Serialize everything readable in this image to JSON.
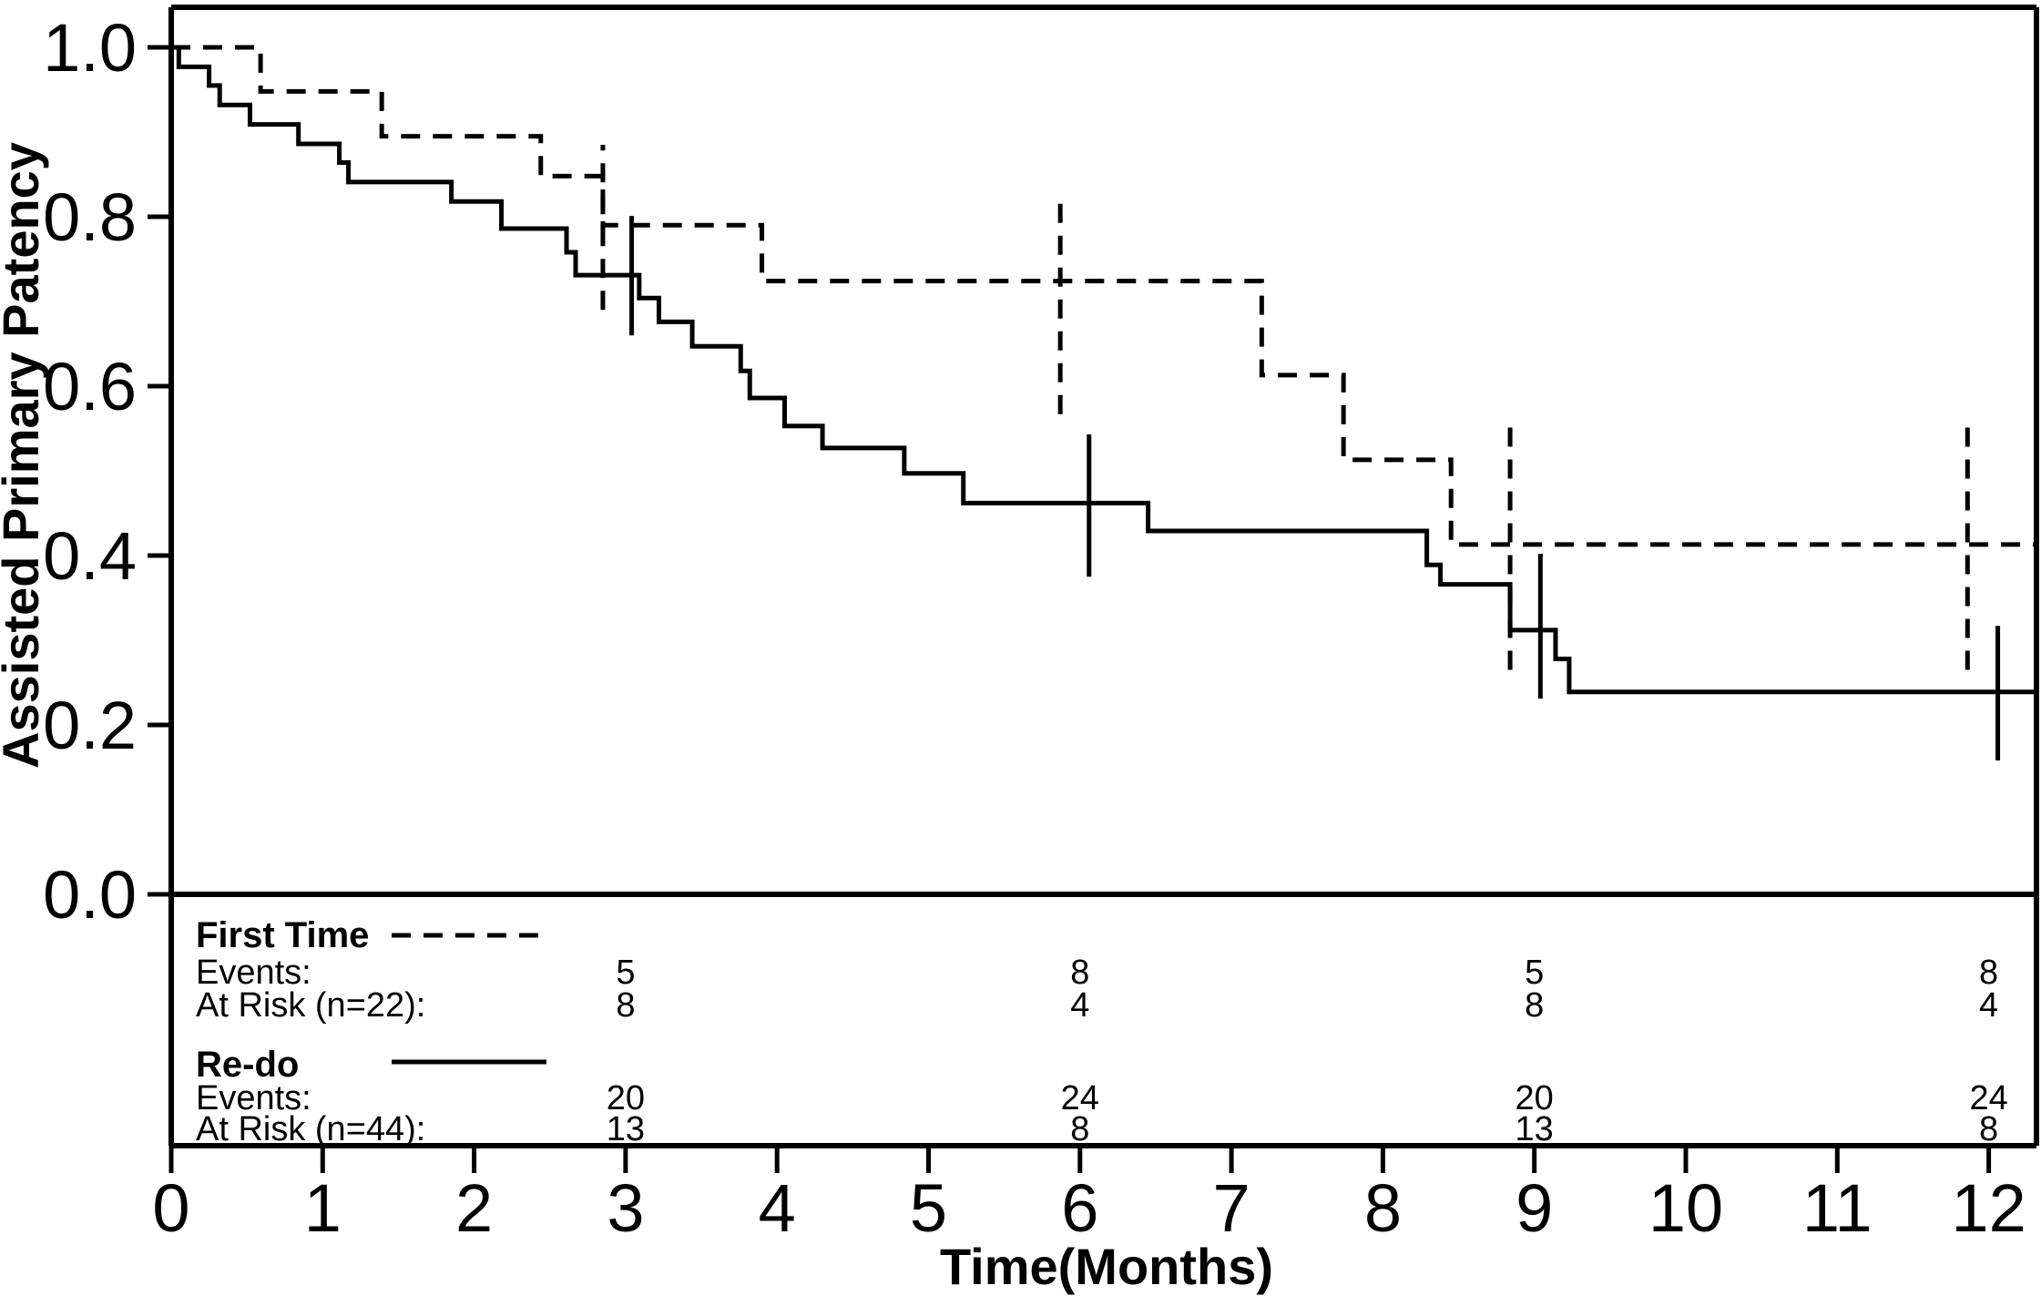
{
  "figure": {
    "background_color": "#ffffff",
    "ink_color": "#000000",
    "y_axis_title": "Assisted Primary Patency",
    "x_axis_title": "Time(Months)"
  },
  "chart_data": {
    "type": "line",
    "subtype": "kaplan_meier_step",
    "title": "",
    "xlabel": "Time(Months)",
    "ylabel": "Assisted Primary Patency",
    "xlim": [
      0,
      12.3
    ],
    "ylim": [
      0.0,
      1.05
    ],
    "grid": false,
    "legend_position": "below-plot-left",
    "x_ticks": [
      0,
      1,
      2,
      3,
      4,
      5,
      6,
      7,
      8,
      9,
      10,
      11,
      12
    ],
    "x_tick_labels": [
      "0",
      "1",
      "2",
      "3",
      "4",
      "5",
      "6",
      "7",
      "8",
      "9",
      "10",
      "11",
      "12"
    ],
    "y_ticks": [
      0.0,
      0.2,
      0.4,
      0.6,
      0.8,
      1.0
    ],
    "y_tick_labels": [
      "0.0",
      "0.2",
      "0.4",
      "0.6",
      "0.8",
      "1.0"
    ],
    "series": [
      {
        "name": "First Time",
        "n": 22,
        "line_style": "dashed",
        "steps_time_survival": [
          [
            0,
            1.0
          ],
          [
            0.59,
            0.948
          ],
          [
            1.39,
            0.895
          ],
          [
            2.44,
            0.848
          ],
          [
            2.85,
            0.79
          ],
          [
            3.9,
            0.724
          ],
          [
            7.2,
            0.613
          ],
          [
            7.74,
            0.513
          ],
          [
            8.45,
            0.413
          ],
          [
            12.3,
            0.413
          ]
        ],
        "ci_whiskers_time_low_high": [
          [
            2.85,
            0.69,
            0.885
          ],
          [
            5.87,
            0.567,
            0.82
          ],
          [
            8.84,
            0.265,
            0.558
          ],
          [
            11.86,
            0.265,
            0.558
          ]
        ]
      },
      {
        "name": "Re-do",
        "n": 44,
        "line_style": "solid",
        "steps_time_survival": [
          [
            0,
            1.0
          ],
          [
            0.05,
            0.977
          ],
          [
            0.25,
            0.955
          ],
          [
            0.32,
            0.932
          ],
          [
            0.52,
            0.909
          ],
          [
            0.84,
            0.886
          ],
          [
            1.11,
            0.864
          ],
          [
            1.17,
            0.841
          ],
          [
            1.85,
            0.818
          ],
          [
            2.18,
            0.786
          ],
          [
            2.61,
            0.758
          ],
          [
            2.67,
            0.731
          ],
          [
            3.09,
            0.704
          ],
          [
            3.22,
            0.676
          ],
          [
            3.44,
            0.647
          ],
          [
            3.76,
            0.618
          ],
          [
            3.82,
            0.586
          ],
          [
            4.05,
            0.553
          ],
          [
            4.3,
            0.527
          ],
          [
            4.84,
            0.497
          ],
          [
            5.23,
            0.462
          ],
          [
            6.45,
            0.429
          ],
          [
            8.29,
            0.389
          ],
          [
            8.38,
            0.366
          ],
          [
            8.84,
            0.312
          ],
          [
            9.14,
            0.278
          ],
          [
            9.23,
            0.239
          ],
          [
            12.3,
            0.239
          ]
        ],
        "ci_whiskers_time_low_high": [
          [
            3.04,
            0.66,
            0.801
          ],
          [
            6.06,
            0.375,
            0.543
          ],
          [
            9.04,
            0.231,
            0.402
          ],
          [
            12.06,
            0.158,
            0.317
          ]
        ]
      }
    ]
  },
  "risk_table": {
    "time_points": [
      3,
      6,
      9,
      12
    ],
    "groups": [
      {
        "name": "First Time",
        "line_style": "dashed",
        "events_label": "Events:",
        "at_risk_label": "At Risk (n=22):",
        "events": [
          "5",
          "8",
          "5",
          "8"
        ],
        "at_risk": [
          "8",
          "4",
          "8",
          "4"
        ]
      },
      {
        "name": "Re-do",
        "line_style": "solid",
        "events_label": "Events:",
        "at_risk_label": "At Risk (n=44):",
        "events": [
          "20",
          "24",
          "20",
          "24"
        ],
        "at_risk": [
          "13",
          "8",
          "13",
          "8"
        ]
      }
    ]
  }
}
